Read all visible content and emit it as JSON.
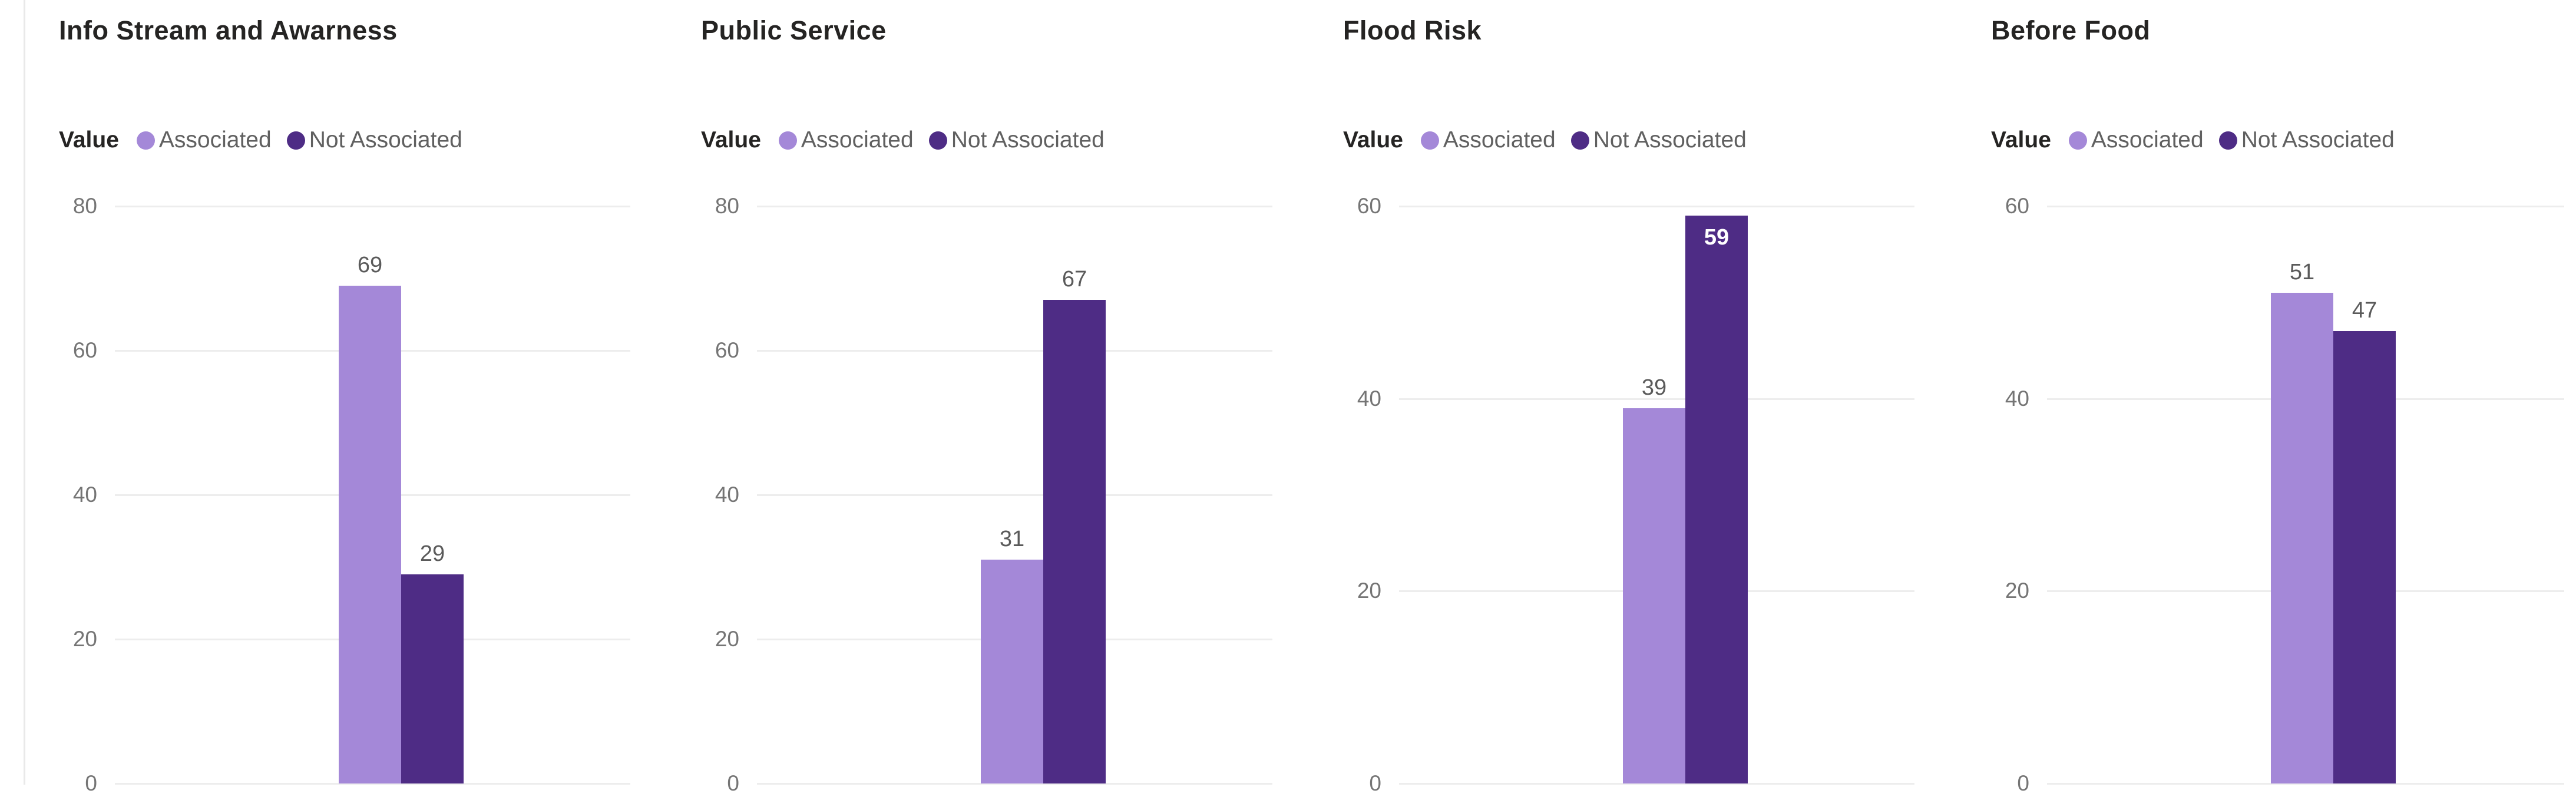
{
  "colors": {
    "associated": "#a488d8",
    "not_associated": "#4e2c85",
    "gridline": "#ededed",
    "axis_label": "#757575",
    "data_label": "#5a5a5a",
    "data_label_inside": "#ffffff",
    "title": "#252423",
    "legend_text": "#606060"
  },
  "legend": {
    "title": "Value",
    "items": [
      "Associated",
      "Not Associated"
    ]
  },
  "chart_data": [
    {
      "type": "bar",
      "title": "Info Stream and Awarness",
      "legend_title": "Value",
      "legend_position": "top",
      "grid": true,
      "categories": [
        "Associated",
        "Not Associated"
      ],
      "values": [
        69,
        29
      ],
      "yticks": [
        0,
        20,
        40,
        60,
        80
      ],
      "ylim": [
        0,
        80
      ],
      "xlabel": "",
      "ylabel": ""
    },
    {
      "type": "bar",
      "title": "Public Service",
      "legend_title": "Value",
      "legend_position": "top",
      "grid": true,
      "categories": [
        "Associated",
        "Not Associated"
      ],
      "values": [
        31,
        67
      ],
      "yticks": [
        0,
        20,
        40,
        60,
        80
      ],
      "ylim": [
        0,
        80
      ],
      "xlabel": "",
      "ylabel": ""
    },
    {
      "type": "bar",
      "title": "Flood Risk",
      "legend_title": "Value",
      "legend_position": "top",
      "grid": true,
      "categories": [
        "Associated",
        "Not Associated"
      ],
      "values": [
        39,
        59
      ],
      "yticks": [
        0,
        20,
        40,
        60
      ],
      "ylim": [
        0,
        60
      ],
      "xlabel": "",
      "ylabel": ""
    },
    {
      "type": "bar",
      "title": "Before Food",
      "legend_title": "Value",
      "legend_position": "top",
      "grid": true,
      "categories": [
        "Associated",
        "Not Associated"
      ],
      "values": [
        51,
        47
      ],
      "yticks": [
        0,
        20,
        40,
        60
      ],
      "ylim": [
        0,
        60
      ],
      "xlabel": "",
      "ylabel": ""
    }
  ]
}
